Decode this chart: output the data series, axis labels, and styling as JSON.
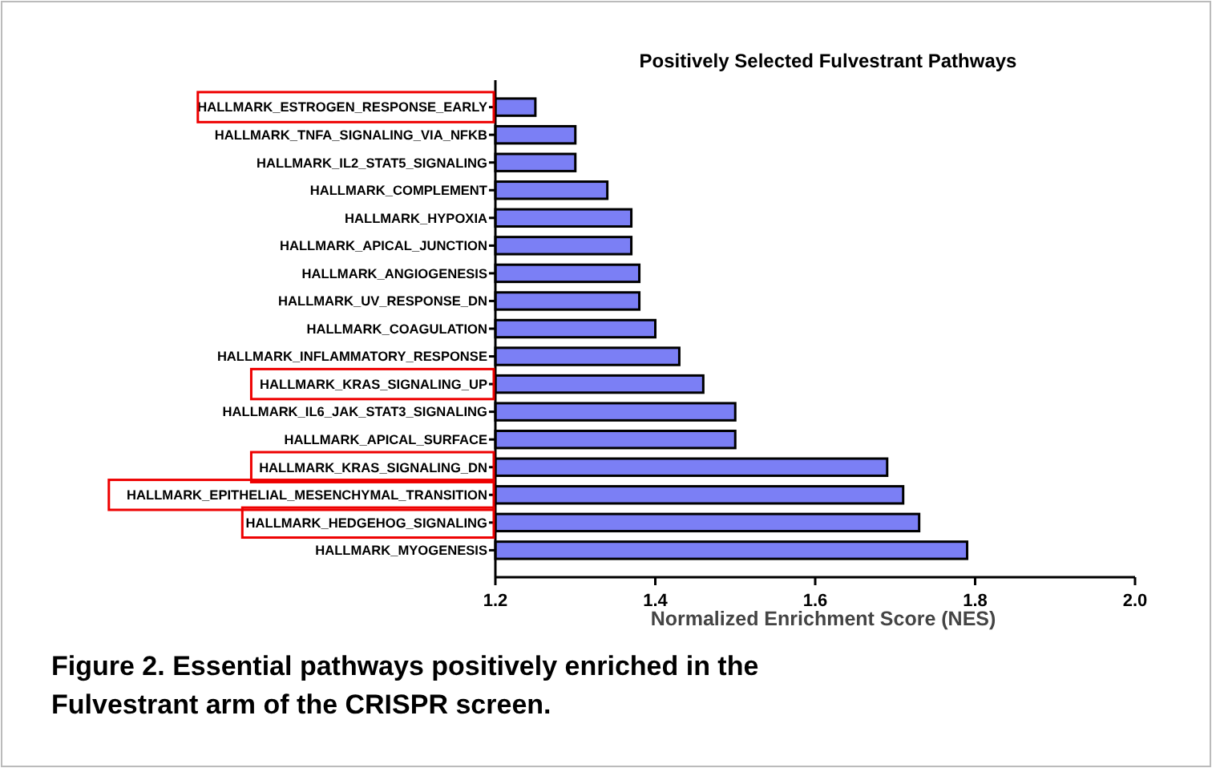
{
  "chart_data": {
    "type": "bar",
    "orientation": "horizontal",
    "title": "Positively Selected Fulvestrant Pathways",
    "xlabel": "Normalized Enrichment Score (NES)",
    "categories": [
      "HALLMARK_ESTROGEN_RESPONSE_EARLY",
      "HALLMARK_TNFA_SIGNALING_VIA_NFKB",
      "HALLMARK_IL2_STAT5_SIGNALING",
      "HALLMARK_COMPLEMENT",
      "HALLMARK_HYPOXIA",
      "HALLMARK_APICAL_JUNCTION",
      "HALLMARK_ANGIOGENESIS",
      "HALLMARK_UV_RESPONSE_DN",
      "HALLMARK_COAGULATION",
      "HALLMARK_INFLAMMATORY_RESPONSE",
      "HALLMARK_KRAS_SIGNALING_UP",
      "HALLMARK_IL6_JAK_STAT3_SIGNALING",
      "HALLMARK_APICAL_SURFACE",
      "HALLMARK_KRAS_SIGNALING_DN",
      "HALLMARK_EPITHELIAL_MESENCHYMAL_TRANSITION",
      "HALLMARK_HEDGEHOG_SIGNALING",
      "HALLMARK_MYOGENESIS"
    ],
    "values": [
      1.25,
      1.3,
      1.3,
      1.34,
      1.37,
      1.37,
      1.38,
      1.38,
      1.4,
      1.43,
      1.46,
      1.5,
      1.5,
      1.69,
      1.71,
      1.73,
      1.79
    ],
    "color": "#7b7ff5",
    "xlim": [
      1.2,
      2.0
    ],
    "xticks": [
      1.2,
      1.4,
      1.6,
      1.8,
      {
        "value": 2.0,
        "label": "2.0"
      }
    ],
    "annotations": [
      "Figure 2. Essential pathways positively enriched in the Fulvestrant arm of the CRISPR screen."
    ]
  }
}
